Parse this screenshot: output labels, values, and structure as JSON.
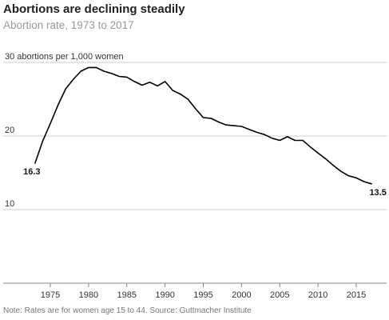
{
  "header": {
    "title": "Abortions are declining steadily",
    "subtitle": "Abortion rate, 1973 to 2017"
  },
  "note": "Note: Rates are for women age 15 to 44. Source: Guttmacher Institute",
  "colors": {
    "line": "#000000",
    "grid": "#cccccc",
    "axis": "#888888",
    "tick_text": "#333333"
  },
  "chart_data": {
    "type": "line",
    "title": "Abortions are declining steadily",
    "subtitle": "Abortion rate, 1973 to 2017",
    "xlabel": "",
    "ylabel": "",
    "y_unit_label": "30 abortions per 1,000 women",
    "xlim": [
      1971,
      2020
    ],
    "ylim": [
      0,
      30
    ],
    "x_ticks": [
      1975,
      1980,
      1985,
      1990,
      1995,
      2000,
      2005,
      2010,
      2015
    ],
    "y_ticks": [
      {
        "value": 10,
        "label": "10"
      },
      {
        "value": 20,
        "label": "20"
      },
      {
        "value": 30,
        "label": "30 abortions per 1,000 women"
      }
    ],
    "grid": "horizontal",
    "annotations": [
      {
        "x": 1973,
        "y": 16.3,
        "label": "16.3",
        "position": "below-left"
      },
      {
        "x": 2017,
        "y": 13.5,
        "label": "13.5",
        "position": "below-right"
      }
    ],
    "series": [
      {
        "x": [
          1973,
          1974,
          1975,
          1976,
          1977,
          1978,
          1979,
          1980,
          1981,
          1982,
          1983,
          1984,
          1985,
          1986,
          1987,
          1988,
          1989,
          1990,
          1991,
          1992,
          1993,
          1994,
          1995,
          1996,
          1997,
          1998,
          1999,
          2000,
          2001,
          2002,
          2003,
          2004,
          2005,
          2006,
          2007,
          2008,
          2009,
          2010,
          2011,
          2012,
          2013,
          2014,
          2015,
          2016,
          2017
        ],
        "values": [
          16.3,
          19.3,
          21.7,
          24.2,
          26.4,
          27.7,
          28.8,
          29.3,
          29.3,
          28.8,
          28.5,
          28.1,
          28.0,
          27.4,
          26.9,
          27.3,
          26.8,
          27.4,
          26.2,
          25.7,
          25.0,
          23.7,
          22.5,
          22.4,
          21.9,
          21.5,
          21.4,
          21.3,
          20.9,
          20.5,
          20.2,
          19.7,
          19.4,
          19.9,
          19.4,
          19.4,
          18.5,
          17.7,
          16.9,
          16.0,
          15.2,
          14.6,
          14.3,
          13.8,
          13.5
        ]
      }
    ]
  }
}
